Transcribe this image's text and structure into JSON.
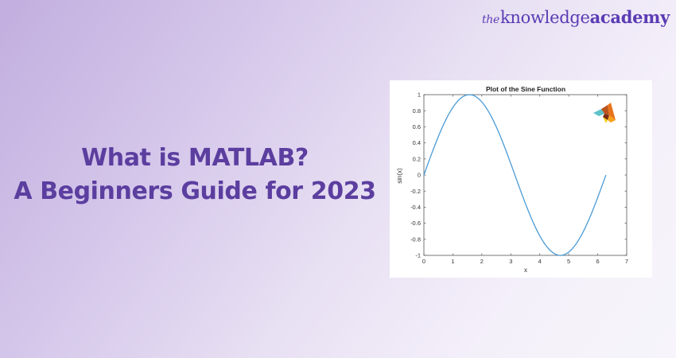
{
  "brand": {
    "prefix": "the",
    "word1": "knowledge",
    "word2": "academy",
    "color": "#5a3bb4"
  },
  "headline": {
    "line1": "What is MATLAB?",
    "line2": "A Beginners Guide for 2023",
    "color": "#5b3e9f"
  },
  "logo": {
    "icon": "matlab-membrane-logo-icon"
  },
  "chart_data": {
    "type": "line",
    "title": "Plot of the Sine Function",
    "xlabel": "x",
    "ylabel": "sin(x)",
    "xlim": [
      0,
      7
    ],
    "ylim": [
      -1,
      1
    ],
    "xticks": [
      0,
      1,
      2,
      3,
      4,
      5,
      6,
      7
    ],
    "yticks": [
      -1,
      -0.8,
      -0.6,
      -0.4,
      -0.2,
      0,
      0.2,
      0.4,
      0.6,
      0.8,
      1
    ],
    "xtick_labels": [
      "0",
      "1",
      "2",
      "3",
      "4",
      "5",
      "6",
      "7"
    ],
    "ytick_labels": [
      "-1",
      "-0.8",
      "-0.6",
      "-0.4",
      "-0.2",
      "0",
      "0.2",
      "0.4",
      "0.6",
      "0.8",
      "1"
    ],
    "grid": false,
    "legend": null,
    "series": [
      {
        "name": "sin(x)",
        "color": "#4a9bd6",
        "x": [
          0,
          0.5236,
          1.0472,
          1.5708,
          2.0944,
          2.618,
          3.1416,
          3.6652,
          4.1888,
          4.7124,
          5.236,
          5.7596,
          6.2832
        ],
        "y": [
          0,
          0.5,
          0.866,
          1,
          0.866,
          0.5,
          0,
          -0.5,
          -0.866,
          -1,
          -0.866,
          -0.5,
          0
        ]
      }
    ]
  }
}
